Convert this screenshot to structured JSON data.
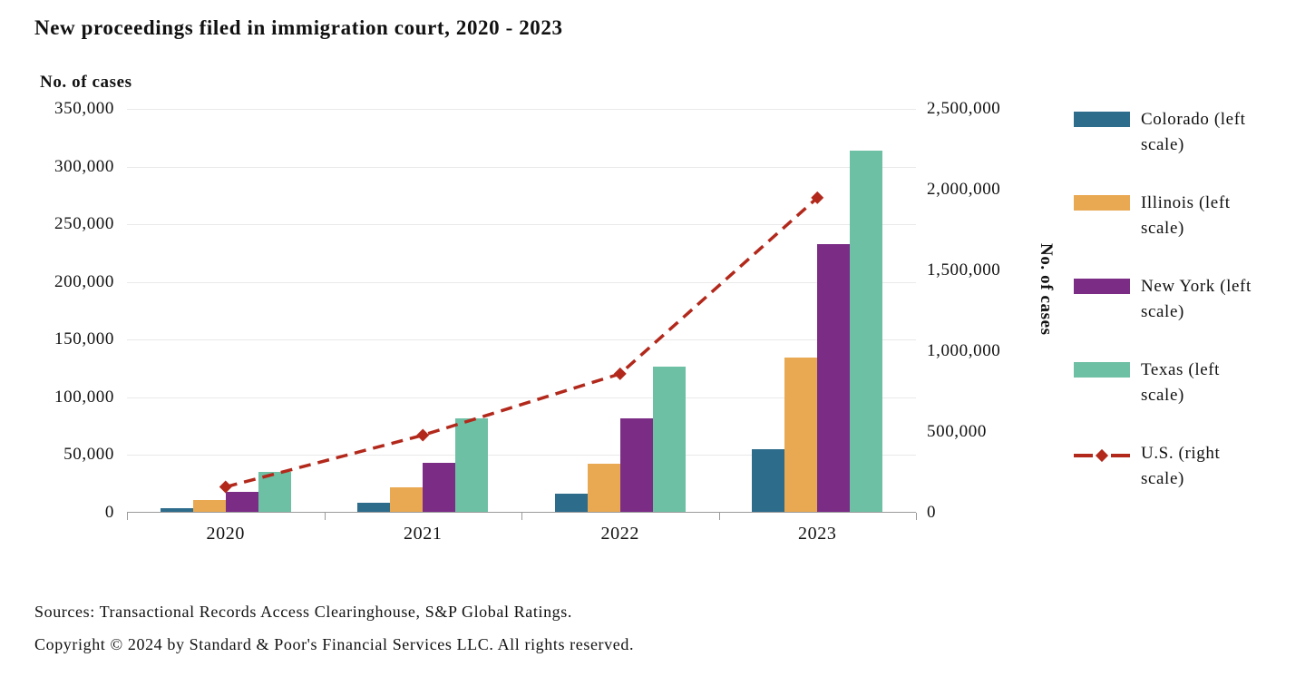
{
  "title": "New proceedings filed in immigration court, 2020 - 2023",
  "axes": {
    "left_label": "No. of cases",
    "right_label": "No. of cases",
    "left_ticks": [
      "350,000",
      "300,000",
      "250,000",
      "200,000",
      "150,000",
      "100,000",
      "50,000",
      "0"
    ],
    "right_ticks": [
      "2,500,000",
      "2,000,000",
      "1,500,000",
      "1,000,000",
      "500,000",
      "0"
    ],
    "x_ticks": [
      "2020",
      "2021",
      "2022",
      "2023"
    ]
  },
  "legend": [
    {
      "label": "Colorado (left scale)",
      "color": "#2e6c8c",
      "type": "bar"
    },
    {
      "label": "Illinois (left scale)",
      "color": "#e9a952",
      "type": "bar"
    },
    {
      "label": "New York (left scale)",
      "color": "#7b2d86",
      "type": "bar"
    },
    {
      "label": "Texas (left scale)",
      "color": "#6ec0a4",
      "type": "bar"
    },
    {
      "label": "U.S. (right scale)",
      "color": "#b2291c",
      "type": "line"
    }
  ],
  "footer": {
    "sources": "Sources: Transactional Records Access Clearinghouse, S&P Global Ratings.",
    "copyright": "Copyright © 2024 by Standard & Poor's Financial Services LLC. All rights reserved."
  },
  "chart_data": {
    "type": "bar",
    "subtype": "grouped bars with overlaid dashed line on secondary axis",
    "title": "New proceedings filed in immigration court, 2020 - 2023",
    "categories": [
      "2020",
      "2021",
      "2022",
      "2023"
    ],
    "series": [
      {
        "name": "Colorado (left scale)",
        "type": "bar",
        "axis": "left",
        "color": "#2e6c8c",
        "values": [
          3000,
          8000,
          15500,
          54000
        ]
      },
      {
        "name": "Illinois (left scale)",
        "type": "bar",
        "axis": "left",
        "color": "#e9a952",
        "values": [
          10000,
          21500,
          41500,
          134000
        ]
      },
      {
        "name": "New York (left scale)",
        "type": "bar",
        "axis": "left",
        "color": "#7b2d86",
        "values": [
          17000,
          42500,
          81000,
          232000
        ]
      },
      {
        "name": "Texas (left scale)",
        "type": "bar",
        "axis": "left",
        "color": "#6ec0a4",
        "values": [
          35000,
          81000,
          126000,
          313000
        ]
      },
      {
        "name": "U.S. (right scale)",
        "type": "line",
        "axis": "right",
        "color": "#b2291c",
        "dashed": true,
        "marker": "diamond",
        "values": [
          160000,
          480000,
          860000,
          1950000
        ]
      }
    ],
    "left_axis": {
      "label": "No. of cases",
      "min": 0,
      "max": 350000,
      "tick_step": 50000
    },
    "right_axis": {
      "label": "No. of cases",
      "min": 0,
      "max": 2500000,
      "tick_step": 500000
    },
    "grid": true,
    "legend_position": "right"
  }
}
